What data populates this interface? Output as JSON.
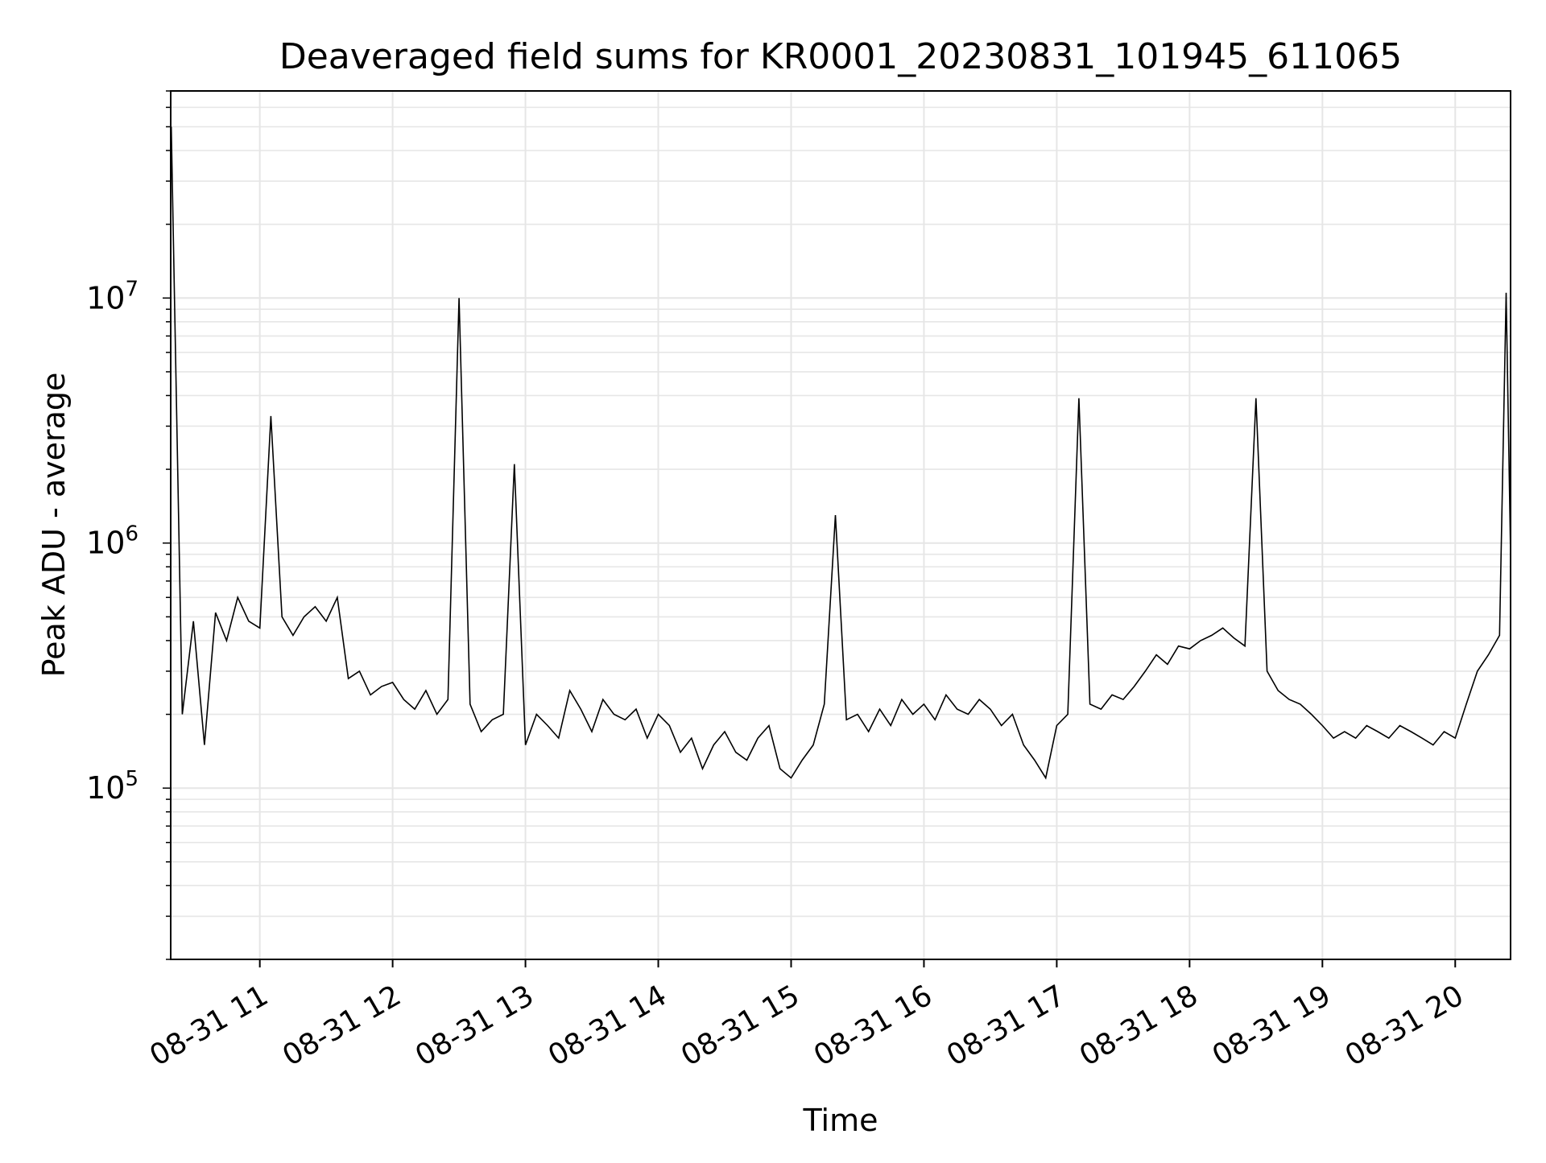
{
  "chart_data": {
    "type": "line",
    "title": "Deaveraged field sums for KR0001_20230831_101945_611065",
    "xlabel": "Time",
    "ylabel": "Peak ADU - average",
    "xscale": "time",
    "yscale": "log",
    "xlim": [
      "2023-08-31 10:19:45",
      "2023-08-31 20:25:00"
    ],
    "ylim": [
      20000,
      70000000
    ],
    "x_ticks": [
      {
        "value": "2023-08-31 11:00",
        "label": "08-31 11"
      },
      {
        "value": "2023-08-31 12:00",
        "label": "08-31 12"
      },
      {
        "value": "2023-08-31 13:00",
        "label": "08-31 13"
      },
      {
        "value": "2023-08-31 14:00",
        "label": "08-31 14"
      },
      {
        "value": "2023-08-31 15:00",
        "label": "08-31 15"
      },
      {
        "value": "2023-08-31 16:00",
        "label": "08-31 16"
      },
      {
        "value": "2023-08-31 17:00",
        "label": "08-31 17"
      },
      {
        "value": "2023-08-31 18:00",
        "label": "08-31 18"
      },
      {
        "value": "2023-08-31 19:00",
        "label": "08-31 19"
      },
      {
        "value": "2023-08-31 20:00",
        "label": "08-31 20"
      }
    ],
    "y_ticks": [
      {
        "value": 100000,
        "base": "10",
        "exp": "5"
      },
      {
        "value": 1000000,
        "base": "10",
        "exp": "6"
      },
      {
        "value": 10000000,
        "base": "10",
        "exp": "7"
      }
    ],
    "grid": true,
    "line_color": "#000000",
    "grid_color": "#e6e6e6",
    "series": [
      {
        "x": [
          "2023-08-31 10:20",
          "2023-08-31 10:25",
          "2023-08-31 10:30",
          "2023-08-31 10:35",
          "2023-08-31 10:40",
          "2023-08-31 10:45",
          "2023-08-31 10:50",
          "2023-08-31 10:55",
          "2023-08-31 11:00",
          "2023-08-31 11:05",
          "2023-08-31 11:10",
          "2023-08-31 11:15",
          "2023-08-31 11:20",
          "2023-08-31 11:25",
          "2023-08-31 11:30",
          "2023-08-31 11:35",
          "2023-08-31 11:40",
          "2023-08-31 11:45",
          "2023-08-31 11:50",
          "2023-08-31 11:55",
          "2023-08-31 12:00",
          "2023-08-31 12:05",
          "2023-08-31 12:10",
          "2023-08-31 12:15",
          "2023-08-31 12:20",
          "2023-08-31 12:25",
          "2023-08-31 12:30",
          "2023-08-31 12:35",
          "2023-08-31 12:40",
          "2023-08-31 12:45",
          "2023-08-31 12:50",
          "2023-08-31 12:55",
          "2023-08-31 13:00",
          "2023-08-31 13:05",
          "2023-08-31 13:10",
          "2023-08-31 13:15",
          "2023-08-31 13:20",
          "2023-08-31 13:25",
          "2023-08-31 13:30",
          "2023-08-31 13:35",
          "2023-08-31 13:40",
          "2023-08-31 13:45",
          "2023-08-31 13:50",
          "2023-08-31 13:55",
          "2023-08-31 14:00",
          "2023-08-31 14:05",
          "2023-08-31 14:10",
          "2023-08-31 14:15",
          "2023-08-31 14:20",
          "2023-08-31 14:25",
          "2023-08-31 14:30",
          "2023-08-31 14:35",
          "2023-08-31 14:40",
          "2023-08-31 14:45",
          "2023-08-31 14:50",
          "2023-08-31 14:55",
          "2023-08-31 15:00",
          "2023-08-31 15:05",
          "2023-08-31 15:10",
          "2023-08-31 15:15",
          "2023-08-31 15:20",
          "2023-08-31 15:25",
          "2023-08-31 15:30",
          "2023-08-31 15:35",
          "2023-08-31 15:40",
          "2023-08-31 15:45",
          "2023-08-31 15:50",
          "2023-08-31 15:55",
          "2023-08-31 16:00",
          "2023-08-31 16:05",
          "2023-08-31 16:10",
          "2023-08-31 16:15",
          "2023-08-31 16:20",
          "2023-08-31 16:25",
          "2023-08-31 16:30",
          "2023-08-31 16:35",
          "2023-08-31 16:40",
          "2023-08-31 16:45",
          "2023-08-31 16:50",
          "2023-08-31 16:55",
          "2023-08-31 17:00",
          "2023-08-31 17:05",
          "2023-08-31 17:10",
          "2023-08-31 17:15",
          "2023-08-31 17:20",
          "2023-08-31 17:25",
          "2023-08-31 17:30",
          "2023-08-31 17:35",
          "2023-08-31 17:40",
          "2023-08-31 17:45",
          "2023-08-31 17:50",
          "2023-08-31 17:55",
          "2023-08-31 18:00",
          "2023-08-31 18:05",
          "2023-08-31 18:10",
          "2023-08-31 18:15",
          "2023-08-31 18:20",
          "2023-08-31 18:25",
          "2023-08-31 18:30",
          "2023-08-31 18:35",
          "2023-08-31 18:40",
          "2023-08-31 18:45",
          "2023-08-31 18:50",
          "2023-08-31 18:55",
          "2023-08-31 19:00",
          "2023-08-31 19:05",
          "2023-08-31 19:10",
          "2023-08-31 19:15",
          "2023-08-31 19:20",
          "2023-08-31 19:25",
          "2023-08-31 19:30",
          "2023-08-31 19:35",
          "2023-08-31 19:40",
          "2023-08-31 19:45",
          "2023-08-31 19:50",
          "2023-08-31 19:55",
          "2023-08-31 20:00",
          "2023-08-31 20:05",
          "2023-08-31 20:10",
          "2023-08-31 20:15",
          "2023-08-31 20:20",
          "2023-08-31 20:23",
          "2023-08-31 20:25"
        ],
        "values": [
          50000000,
          200000,
          480000,
          150000,
          520000,
          400000,
          600000,
          480000,
          450000,
          3300000,
          500000,
          420000,
          500000,
          550000,
          480000,
          600000,
          280000,
          300000,
          240000,
          260000,
          270000,
          230000,
          210000,
          250000,
          200000,
          230000,
          10000000,
          220000,
          170000,
          190000,
          200000,
          2100000,
          150000,
          200000,
          180000,
          160000,
          250000,
          210000,
          170000,
          230000,
          200000,
          190000,
          210000,
          160000,
          200000,
          180000,
          140000,
          160000,
          120000,
          150000,
          170000,
          140000,
          130000,
          160000,
          180000,
          120000,
          110000,
          130000,
          150000,
          220000,
          1300000,
          190000,
          200000,
          170000,
          210000,
          180000,
          230000,
          200000,
          220000,
          190000,
          240000,
          210000,
          200000,
          230000,
          210000,
          180000,
          200000,
          150000,
          130000,
          110000,
          180000,
          200000,
          3900000,
          220000,
          210000,
          240000,
          230000,
          260000,
          300000,
          350000,
          320000,
          380000,
          370000,
          400000,
          420000,
          450000,
          410000,
          380000,
          3900000,
          300000,
          250000,
          230000,
          220000,
          200000,
          180000,
          160000,
          170000,
          160000,
          180000,
          170000,
          160000,
          180000,
          170000,
          160000,
          150000,
          170000,
          160000,
          220000,
          300000,
          350000,
          420000,
          10500000,
          900000
        ]
      }
    ]
  }
}
